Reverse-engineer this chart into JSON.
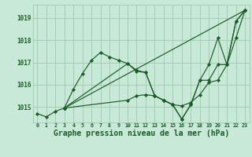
{
  "bg_color": "#c8e8d8",
  "grid_color": "#a0c8b0",
  "line_color": "#1a5c28",
  "marker_color": "#1a5c28",
  "xlabel": "Graphe pression niveau de la mer (hPa)",
  "xlabel_fontsize": 7.0,
  "ylabel_ticks": [
    1015,
    1016,
    1017,
    1018,
    1019
  ],
  "xlim": [
    -0.5,
    23.5
  ],
  "ylim": [
    1014.3,
    1019.6
  ],
  "series": [
    {
      "x": [
        0,
        1,
        2,
        3,
        4,
        5,
        6,
        7,
        8,
        9,
        10,
        11,
        12,
        13,
        14,
        15,
        16,
        17,
        18,
        19,
        20,
        21,
        22,
        23
      ],
      "y": [
        1014.7,
        1014.55,
        1014.8,
        1014.95,
        1015.8,
        1016.5,
        1017.1,
        1017.45,
        1017.25,
        1017.1,
        1016.95,
        1016.65,
        1016.55,
        1015.5,
        1015.3,
        1015.1,
        1014.45,
        1015.1,
        1016.2,
        1016.9,
        1018.1,
        1016.9,
        1018.85,
        1019.35
      ]
    },
    {
      "x": [
        3,
        10,
        11,
        12,
        13,
        14,
        15,
        16,
        17,
        18,
        19,
        20,
        21,
        22,
        23
      ],
      "y": [
        1014.95,
        1016.95,
        1016.6,
        1016.55,
        1015.5,
        1015.3,
        1015.1,
        1014.45,
        1015.1,
        1016.2,
        1016.2,
        1016.9,
        1016.9,
        1018.85,
        1019.35
      ]
    },
    {
      "x": [
        3,
        23
      ],
      "y": [
        1014.95,
        1019.35
      ]
    },
    {
      "x": [
        3,
        10,
        11,
        12,
        13,
        14,
        15,
        16,
        17,
        18,
        19,
        20,
        21,
        22,
        23
      ],
      "y": [
        1014.95,
        1015.3,
        1015.5,
        1015.55,
        1015.5,
        1015.3,
        1015.1,
        1015.05,
        1015.2,
        1015.55,
        1016.1,
        1016.2,
        1016.9,
        1018.1,
        1019.35
      ]
    }
  ]
}
